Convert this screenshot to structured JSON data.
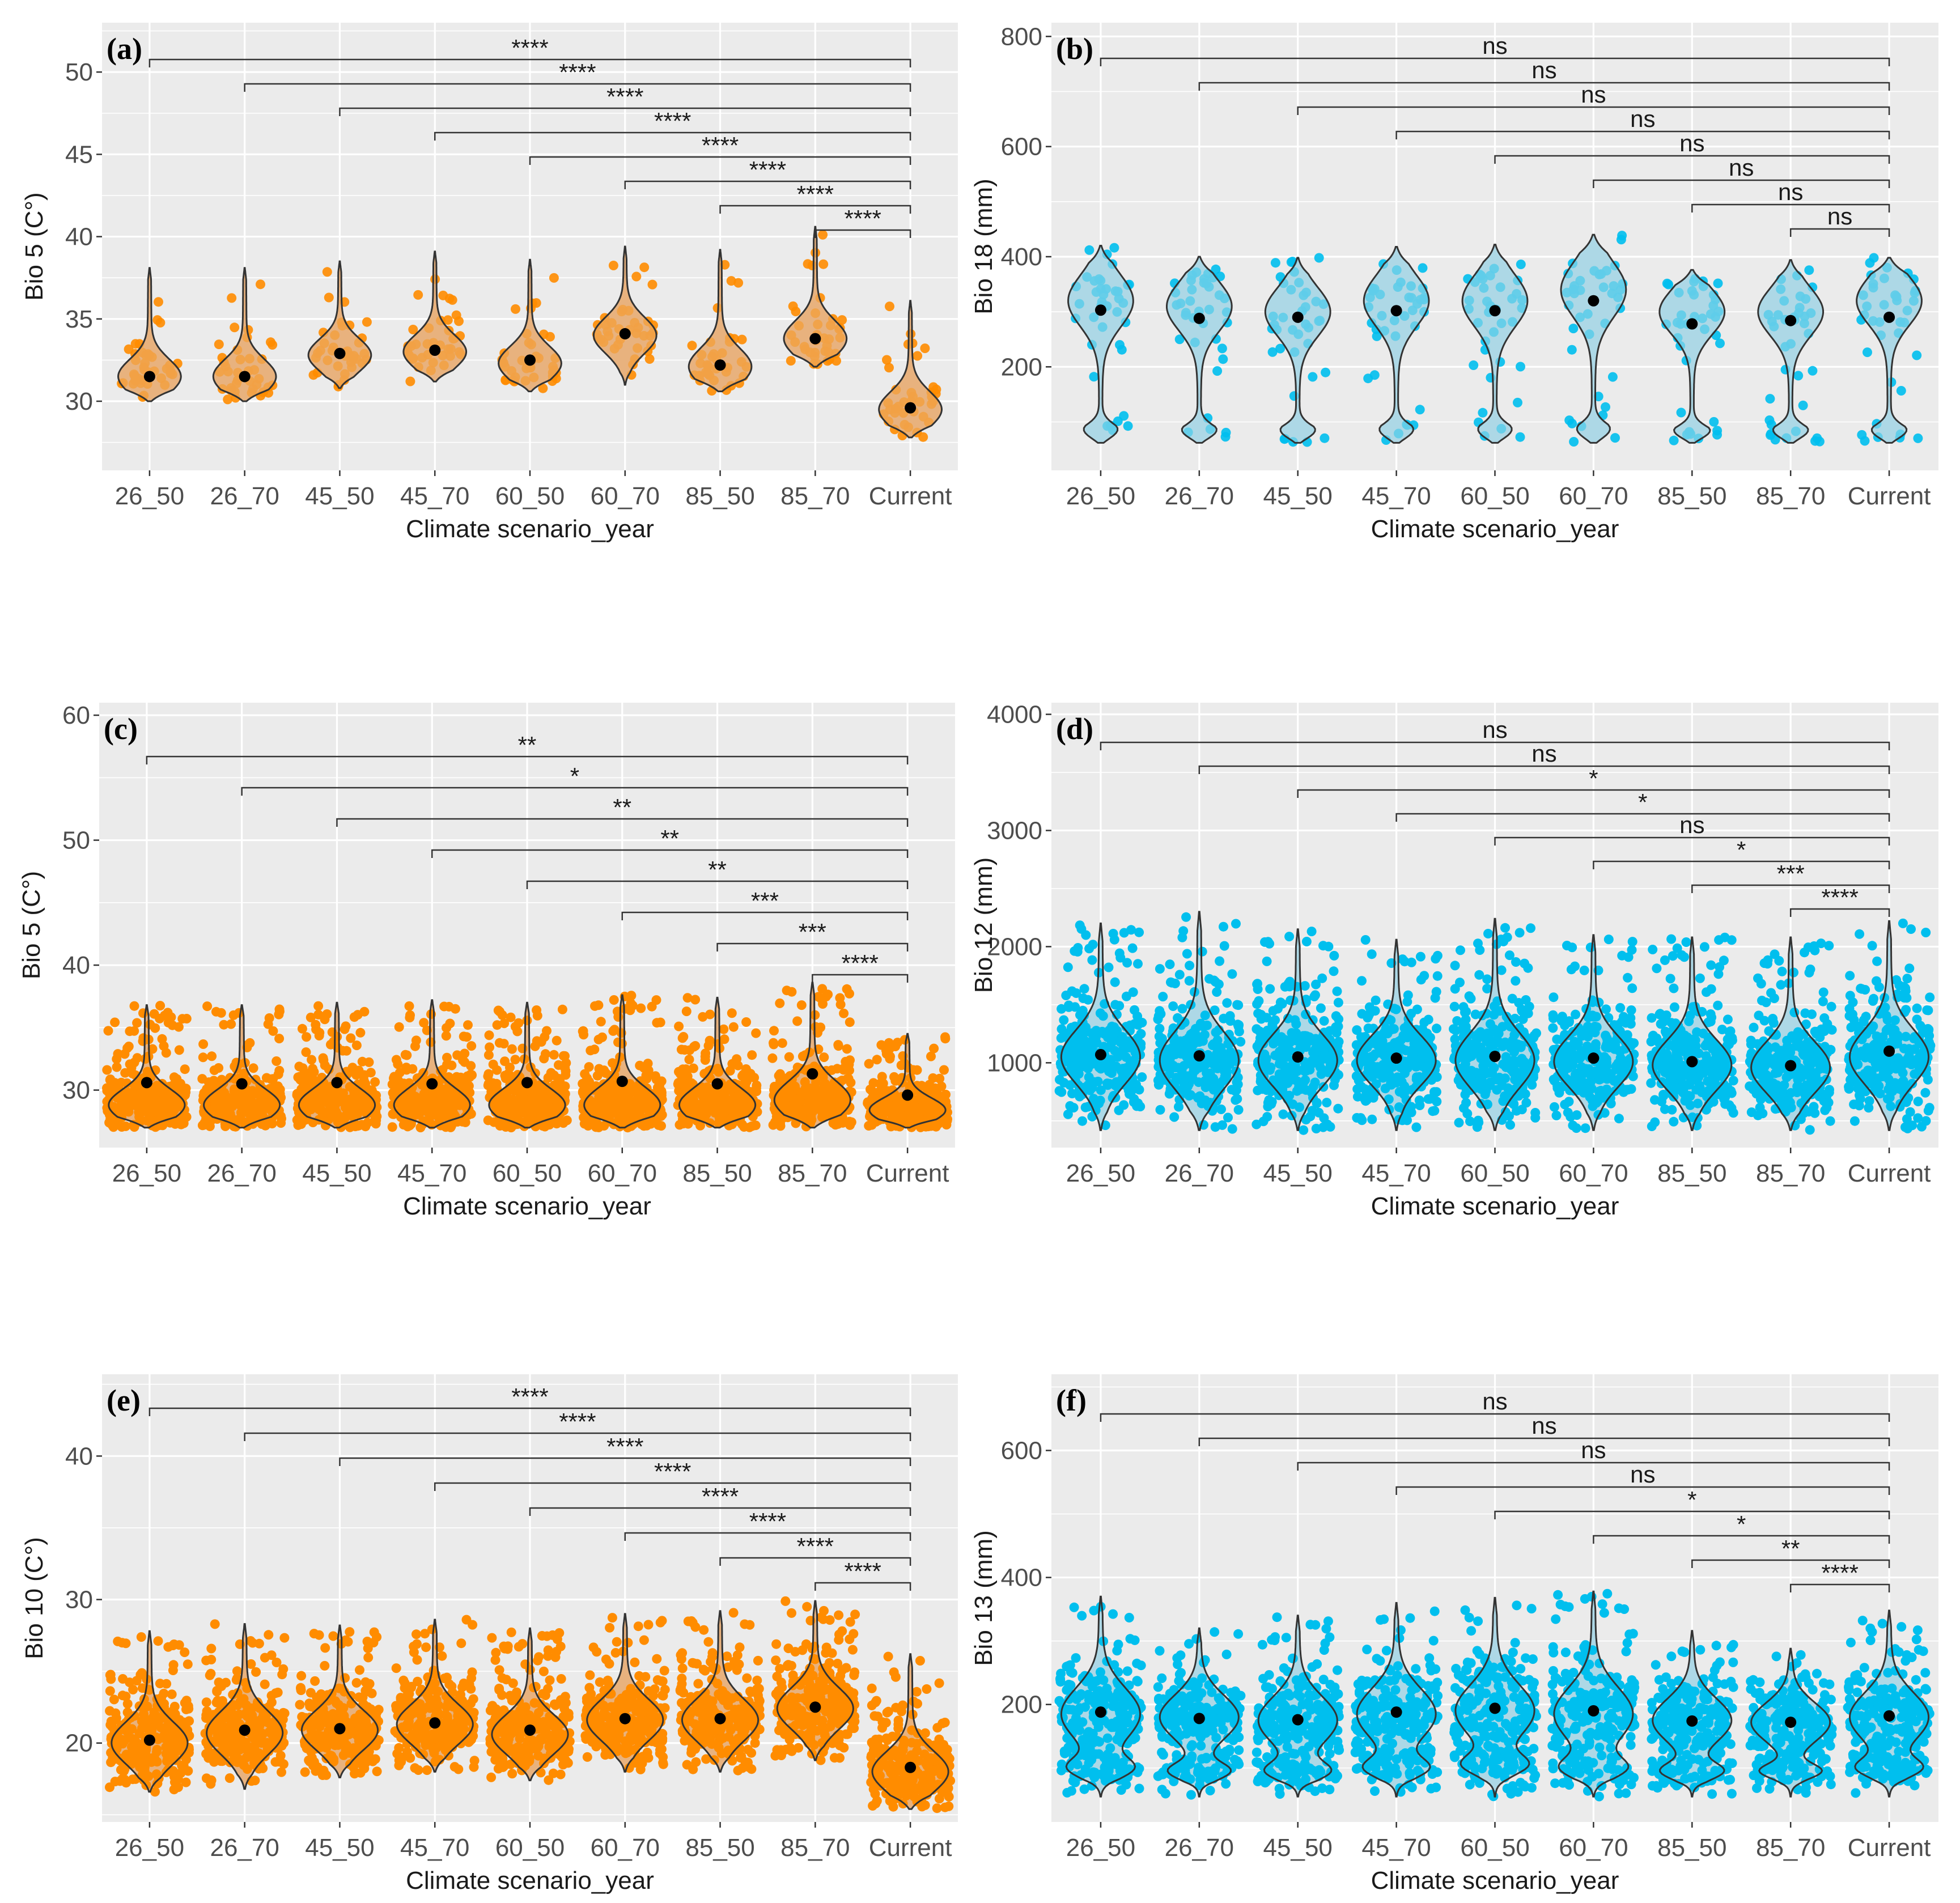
{
  "categories": [
    "26_50",
    "26_70",
    "45_50",
    "45_70",
    "60_50",
    "60_70",
    "85_50",
    "85_70",
    "Current"
  ],
  "colors": {
    "orange_points": "#FF8C00",
    "orange_fill": "#E8B27E",
    "blue_points": "#00BFEE",
    "blue_fill": "#ADD8E6",
    "panel_bg": "#EBEBEB",
    "grid": "#FFFFFF",
    "mean_dot": "#000000"
  },
  "chart_data": [
    {
      "type": "violin",
      "panel": "(a)",
      "ylabel": "Bio 5 (C°)",
      "xlabel": "Climate scenario_year",
      "ylim": [
        25.8,
        53
      ],
      "yticks": [
        30,
        35,
        40,
        45,
        50
      ],
      "ytick_labels": [
        "30",
        "35",
        "40",
        "45",
        "50"
      ],
      "color": "orange",
      "fill": "light",
      "density": "sparse",
      "means": [
        31.5,
        31.5,
        32.9,
        33.1,
        32.5,
        34.1,
        32.2,
        33.8,
        29.6
      ],
      "ranges": [
        [
          30.0,
          38.1
        ],
        [
          30.0,
          38.1
        ],
        [
          30.8,
          38.5
        ],
        [
          31.2,
          39.1
        ],
        [
          30.6,
          38.6
        ],
        [
          31.0,
          39.4
        ],
        [
          30.6,
          39.2
        ],
        [
          32.1,
          40.6
        ],
        [
          27.8,
          36.1
        ]
      ],
      "modes": [
        [
          31.5
        ],
        [
          31.5
        ],
        [
          32.8
        ],
        [
          33.0
        ],
        [
          32.3
        ],
        [
          34.0
        ],
        [
          32.1
        ],
        [
          33.8
        ],
        [
          29.5
        ]
      ],
      "comparison_labels": [
        "****",
        "****",
        "****",
        "****",
        "****",
        "****",
        "****",
        "****"
      ]
    },
    {
      "type": "violin",
      "panel": "(b)",
      "ylabel": "Bio 18 (mm)",
      "xlabel": "Climate scenario_year",
      "ylim": [
        12,
        825
      ],
      "yticks": [
        200,
        400,
        600,
        800
      ],
      "ytick_labels": [
        "200",
        "400",
        "600",
        "800"
      ],
      "color": "blue",
      "fill": "light",
      "density": "sparse",
      "means": [
        303,
        288,
        290,
        302,
        302,
        320,
        278,
        284,
        290
      ],
      "ranges": [
        [
          62,
          420
        ],
        [
          62,
          400
        ],
        [
          62,
          398
        ],
        [
          62,
          418
        ],
        [
          62,
          422
        ],
        [
          62,
          440
        ],
        [
          62,
          376
        ],
        [
          62,
          394
        ],
        [
          62,
          398
        ]
      ],
      "modes": [
        [
          320,
          75
        ],
        [
          310,
          75
        ],
        [
          300,
          75
        ],
        [
          320,
          75
        ],
        [
          320,
          75
        ],
        [
          340,
          75
        ],
        [
          300,
          75
        ],
        [
          300,
          75
        ],
        [
          320,
          75
        ]
      ],
      "comparison_labels": [
        "ns",
        "ns",
        "ns",
        "ns",
        "ns",
        "ns",
        "ns",
        "ns"
      ]
    },
    {
      "type": "violin",
      "panel": "(c)",
      "ylabel": "Bio 5 (C°)",
      "xlabel": "Climate scenario_year",
      "ylim": [
        25.4,
        61
      ],
      "yticks": [
        30,
        40,
        50,
        60
      ],
      "ytick_labels": [
        "30",
        "40",
        "50",
        "60"
      ],
      "color": "orange",
      "fill": "dense",
      "density": "dense",
      "means": [
        30.6,
        30.5,
        30.6,
        30.5,
        30.6,
        30.7,
        30.5,
        31.3,
        29.6
      ],
      "ranges": [
        [
          27.0,
          36.8
        ],
        [
          27.0,
          36.8
        ],
        [
          27.0,
          37.0
        ],
        [
          27.0,
          37.2
        ],
        [
          27.0,
          37.0
        ],
        [
          27.0,
          37.6
        ],
        [
          27.0,
          37.4
        ],
        [
          27.0,
          38.6
        ],
        [
          27.0,
          34.5
        ]
      ],
      "modes": [
        [
          28.8
        ],
        [
          28.8
        ],
        [
          28.8
        ],
        [
          28.8
        ],
        [
          28.8
        ],
        [
          28.8
        ],
        [
          28.8
        ],
        [
          29.2
        ],
        [
          28.4
        ]
      ],
      "comparison_labels": [
        "**",
        "*",
        "**",
        "**",
        "**",
        "***",
        "***",
        "****"
      ]
    },
    {
      "type": "violin",
      "panel": "(d)",
      "ylabel": "Bio 12 (mm)",
      "xlabel": "Climate scenario_year",
      "ylim": [
        270,
        4100
      ],
      "yticks": [
        1000,
        2000,
        3000,
        4000
      ],
      "ytick_labels": [
        "1000",
        "2000",
        "3000",
        "4000"
      ],
      "color": "blue",
      "fill": "dense",
      "density": "dense",
      "means": [
        1070,
        1060,
        1050,
        1040,
        1055,
        1040,
        1010,
        975,
        1100
      ],
      "ranges": [
        [
          420,
          2200
        ],
        [
          420,
          2300
        ],
        [
          420,
          2150
        ],
        [
          420,
          2060
        ],
        [
          420,
          2240
        ],
        [
          420,
          2100
        ],
        [
          420,
          2080
        ],
        [
          420,
          2080
        ],
        [
          420,
          2220
        ]
      ],
      "modes": [
        [
          1050
        ],
        [
          1020
        ],
        [
          1020
        ],
        [
          1020
        ],
        [
          1020
        ],
        [
          1010
        ],
        [
          980
        ],
        [
          960
        ],
        [
          1050
        ]
      ],
      "comparison_labels": [
        "ns",
        "ns",
        "*",
        "*",
        "ns",
        "*",
        "***",
        "****"
      ]
    },
    {
      "type": "violin",
      "panel": "(e)",
      "ylabel": "Bio 10 (C°)",
      "xlabel": "Climate scenario_year",
      "ylim": [
        14.5,
        45.7
      ],
      "yticks": [
        20,
        30,
        40
      ],
      "ytick_labels": [
        "20",
        "30",
        "40"
      ],
      "color": "orange",
      "fill": "dense",
      "density": "dense",
      "means": [
        20.2,
        20.9,
        21.0,
        21.4,
        20.9,
        21.7,
        21.7,
        22.5,
        18.3
      ],
      "ranges": [
        [
          16.6,
          27.8
        ],
        [
          16.8,
          28.3
        ],
        [
          17.6,
          28.2
        ],
        [
          18.0,
          28.6
        ],
        [
          17.4,
          28.0
        ],
        [
          18.0,
          29.0
        ],
        [
          18.0,
          29.2
        ],
        [
          18.8,
          29.9
        ],
        [
          15.4,
          26.2
        ]
      ],
      "modes": [
        [
          20.0
        ],
        [
          20.7
        ],
        [
          20.9
        ],
        [
          21.3
        ],
        [
          20.6
        ],
        [
          21.6
        ],
        [
          21.6
        ],
        [
          22.4
        ],
        [
          18.0
        ]
      ],
      "comparison_labels": [
        "****",
        "****",
        "****",
        "****",
        "****",
        "****",
        "****",
        "****"
      ]
    },
    {
      "type": "violin",
      "panel": "(f)",
      "ylabel": "Bio 13 (mm)",
      "xlabel": "Climate scenario_year",
      "ylim": [
        15,
        720
      ],
      "yticks": [
        200,
        400,
        600
      ],
      "ytick_labels": [
        "200",
        "400",
        "600"
      ],
      "color": "blue",
      "fill": "dense",
      "density": "dense",
      "means": [
        188,
        178,
        176,
        188,
        194,
        190,
        174,
        172,
        182
      ],
      "ranges": [
        [
          55,
          370
        ],
        [
          55,
          320
        ],
        [
          55,
          340
        ],
        [
          55,
          360
        ],
        [
          55,
          368
        ],
        [
          55,
          378
        ],
        [
          55,
          316
        ],
        [
          55,
          288
        ],
        [
          55,
          348
        ]
      ],
      "modes": [
        [
          185,
          100
        ],
        [
          180,
          95
        ],
        [
          175,
          95
        ],
        [
          185,
          100
        ],
        [
          190,
          105
        ],
        [
          185,
          100
        ],
        [
          175,
          95
        ],
        [
          172,
          95
        ],
        [
          180,
          100
        ]
      ],
      "comparison_labels": [
        "ns",
        "ns",
        "ns",
        "ns",
        "*",
        "*",
        "**",
        "****"
      ]
    }
  ]
}
